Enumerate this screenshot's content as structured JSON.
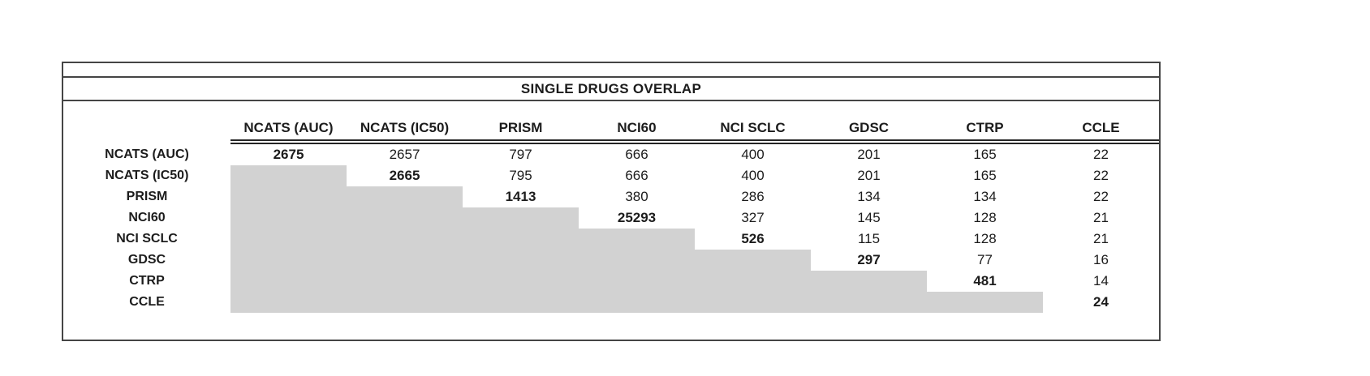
{
  "chart_data": {
    "type": "table",
    "title": "SINGLE DRUGS OVERLAP",
    "columns": [
      "NCATS (AUC)",
      "NCATS (IC50)",
      "PRISM",
      "NCI60",
      "NCI SCLC",
      "GDSC",
      "CTRP",
      "CCLE"
    ],
    "rows": [
      {
        "label": "NCATS (AUC)",
        "values": [
          2675,
          2657,
          797,
          666,
          400,
          201,
          165,
          22
        ]
      },
      {
        "label": "NCATS (IC50)",
        "values": [
          null,
          2665,
          795,
          666,
          400,
          201,
          165,
          22
        ]
      },
      {
        "label": "PRISM",
        "values": [
          null,
          null,
          1413,
          380,
          286,
          134,
          134,
          22
        ]
      },
      {
        "label": "NCI60",
        "values": [
          null,
          null,
          null,
          25293,
          327,
          145,
          128,
          21
        ]
      },
      {
        "label": "NCI SCLC",
        "values": [
          null,
          null,
          null,
          null,
          526,
          115,
          128,
          21
        ]
      },
      {
        "label": "GDSC",
        "values": [
          null,
          null,
          null,
          null,
          null,
          297,
          77,
          16
        ]
      },
      {
        "label": "CTRP",
        "values": [
          null,
          null,
          null,
          null,
          null,
          null,
          481,
          14
        ]
      },
      {
        "label": "CCLE",
        "values": [
          null,
          null,
          null,
          null,
          null,
          null,
          null,
          24
        ]
      }
    ],
    "layout": {
      "lower_triangle": "shaded",
      "diagonal_style": "bold",
      "header_rule": "double-line",
      "grid": "off"
    }
  },
  "colors": {
    "shaded_fill": "#d2d2d2",
    "frame_border": "#454545",
    "text": "#1c1c1c"
  }
}
